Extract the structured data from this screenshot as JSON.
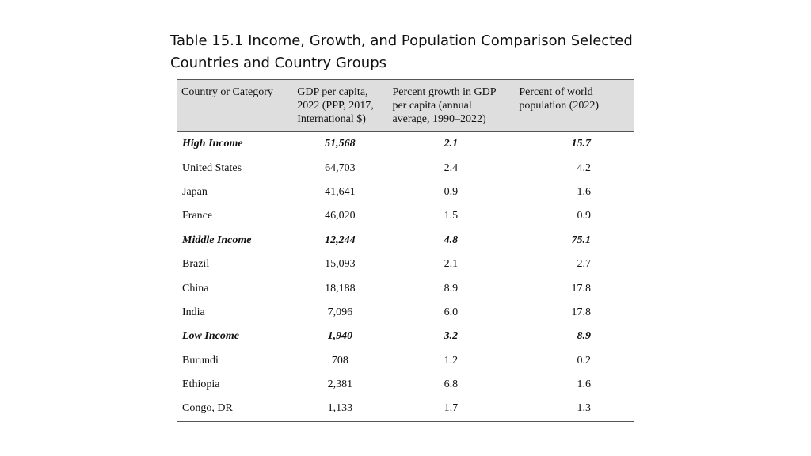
{
  "title": "Table 15.1 Income, Growth, and Population Comparison Selected Countries and Country Groups",
  "columns": [
    "Country or Category",
    "GDP per capita, 2022 (PPP, 2017, International $)",
    "Percent growth in GDP per capita (annual average, 1990–2022)",
    "Percent of world population (2022)"
  ],
  "rows": [
    {
      "name": "High Income",
      "gdp": "51,568",
      "growth": "2.1",
      "pop": "15.7",
      "group": true
    },
    {
      "name": "United States",
      "gdp": "64,703",
      "growth": "2.4",
      "pop": "4.2",
      "group": false
    },
    {
      "name": "Japan",
      "gdp": "41,641",
      "growth": "0.9",
      "pop": "1.6",
      "group": false
    },
    {
      "name": "France",
      "gdp": "46,020",
      "growth": "1.5",
      "pop": "0.9",
      "group": false
    },
    {
      "name": "Middle Income",
      "gdp": "12,244",
      "growth": "4.8",
      "pop": "75.1",
      "group": true
    },
    {
      "name": "Brazil",
      "gdp": "15,093",
      "growth": "2.1",
      "pop": "2.7",
      "group": false
    },
    {
      "name": "China",
      "gdp": "18,188",
      "growth": "8.9",
      "pop": "17.8",
      "group": false
    },
    {
      "name": "India",
      "gdp": "7,096",
      "growth": "6.0",
      "pop": "17.8",
      "group": false
    },
    {
      "name": "Low Income",
      "gdp": "1,940",
      "growth": "3.2",
      "pop": "8.9",
      "group": true
    },
    {
      "name": "Burundi",
      "gdp": "708",
      "growth": "1.2",
      "pop": "0.2",
      "group": false
    },
    {
      "name": "Ethiopia",
      "gdp": "2,381",
      "growth": "6.8",
      "pop": "1.6",
      "group": false
    },
    {
      "name": "Congo, DR",
      "gdp": "1,133",
      "growth": "1.7",
      "pop": "1.3",
      "group": false
    }
  ]
}
